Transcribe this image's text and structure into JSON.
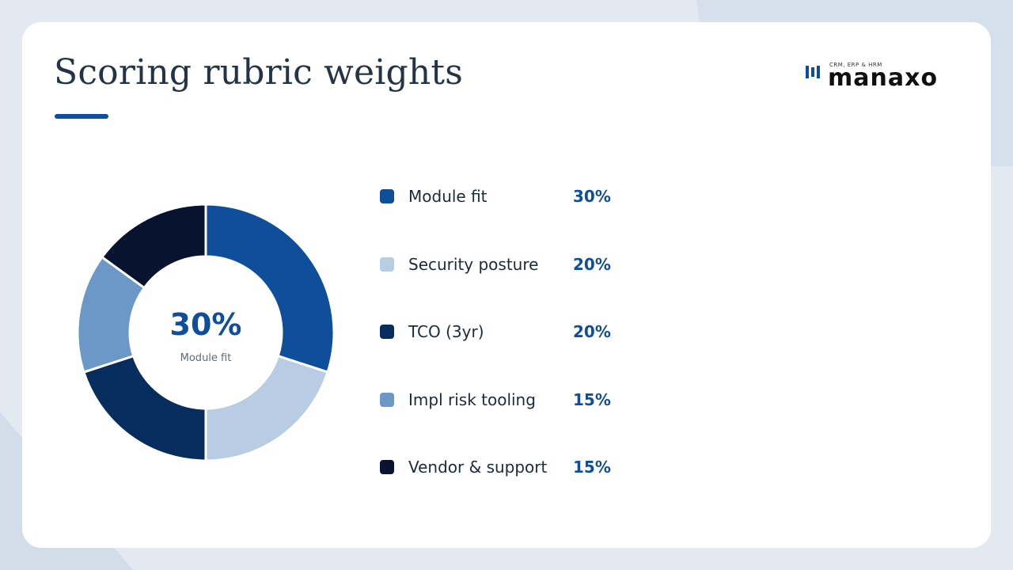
{
  "slide": {
    "title": "Scoring rubric weights"
  },
  "logo": {
    "tagline": "CRM, ERP & HRM",
    "wordmark": "manaxo"
  },
  "donut_center": {
    "value": "30%",
    "label": "Module fit"
  },
  "chart_data": {
    "type": "pie",
    "donut": true,
    "categories": [
      "Module fit",
      "Security posture",
      "TCO (3yr)",
      "Impl risk tooling",
      "Vendor & support"
    ],
    "values": [
      30,
      20,
      20,
      15,
      15
    ],
    "value_labels": [
      "30%",
      "20%",
      "20%",
      "15%",
      "15%"
    ],
    "colors": [
      "#0f4e9a",
      "#b8cde3",
      "#072d5e",
      "#6b98c6",
      "#07132f"
    ],
    "legend_position": "right"
  }
}
